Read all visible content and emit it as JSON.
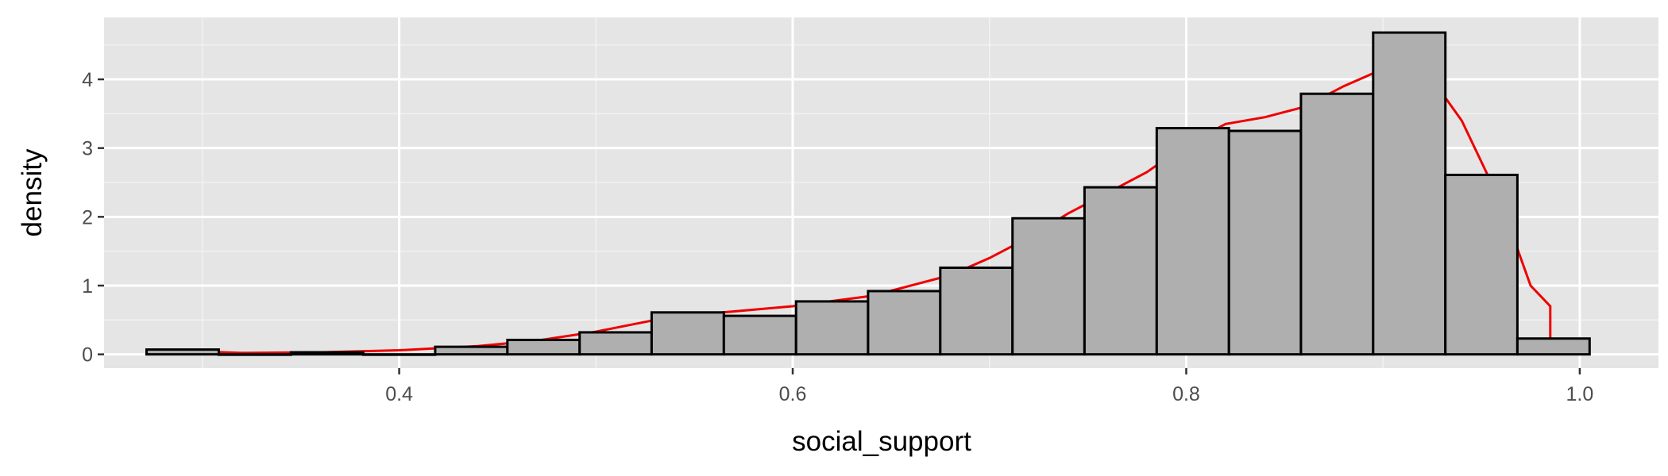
{
  "chart_data": {
    "type": "bar",
    "subtype": "histogram-with-density",
    "title": "",
    "xlabel": "social_support",
    "ylabel": "density",
    "xlim": [
      0.25,
      1.04
    ],
    "ylim": [
      -0.2,
      4.9
    ],
    "x_ticks": [
      {
        "value": 0.4,
        "label": "0.4"
      },
      {
        "value": 0.6,
        "label": "0.6"
      },
      {
        "value": 0.8,
        "label": "0.8"
      },
      {
        "value": 1.0,
        "label": "1.0"
      }
    ],
    "y_ticks": [
      {
        "value": 0,
        "label": "0"
      },
      {
        "value": 1,
        "label": "1"
      },
      {
        "value": 2,
        "label": "2"
      },
      {
        "value": 3,
        "label": "3"
      },
      {
        "value": 4,
        "label": "4"
      }
    ],
    "x_minor_breaks": [
      0.3,
      0.5,
      0.7,
      0.9
    ],
    "y_minor_breaks": [
      0.5,
      1.5,
      2.5,
      3.5,
      4.5
    ],
    "grid": true,
    "bins": [
      {
        "x0": 0.2716,
        "x1": 0.3083,
        "density": 0.07
      },
      {
        "x0": 0.3083,
        "x1": 0.345,
        "density": 0.0
      },
      {
        "x0": 0.345,
        "x1": 0.3817,
        "density": 0.03
      },
      {
        "x0": 0.3817,
        "x1": 0.4183,
        "density": 0.0
      },
      {
        "x0": 0.4183,
        "x1": 0.455,
        "density": 0.11
      },
      {
        "x0": 0.455,
        "x1": 0.4917,
        "density": 0.21
      },
      {
        "x0": 0.4917,
        "x1": 0.5283,
        "density": 0.32
      },
      {
        "x0": 0.5283,
        "x1": 0.565,
        "density": 0.61
      },
      {
        "x0": 0.565,
        "x1": 0.6017,
        "density": 0.56
      },
      {
        "x0": 0.6017,
        "x1": 0.6383,
        "density": 0.77
      },
      {
        "x0": 0.6383,
        "x1": 0.675,
        "density": 0.92
      },
      {
        "x0": 0.675,
        "x1": 0.7117,
        "density": 1.26
      },
      {
        "x0": 0.7117,
        "x1": 0.7483,
        "density": 1.98
      },
      {
        "x0": 0.7483,
        "x1": 0.785,
        "density": 2.43
      },
      {
        "x0": 0.785,
        "x1": 0.8217,
        "density": 3.29
      },
      {
        "x0": 0.8217,
        "x1": 0.8583,
        "density": 3.25
      },
      {
        "x0": 0.8583,
        "x1": 0.895,
        "density": 3.79
      },
      {
        "x0": 0.895,
        "x1": 0.9317,
        "density": 4.68
      },
      {
        "x0": 0.9317,
        "x1": 0.9683,
        "density": 2.61
      },
      {
        "x0": 0.9683,
        "x1": 1.005,
        "density": 0.23
      }
    ],
    "density_curve": {
      "x": [
        0.29,
        0.32,
        0.36,
        0.4,
        0.44,
        0.47,
        0.5,
        0.53,
        0.56,
        0.6,
        0.64,
        0.68,
        0.7,
        0.72,
        0.74,
        0.76,
        0.78,
        0.8,
        0.82,
        0.84,
        0.86,
        0.88,
        0.9,
        0.92,
        0.94,
        0.96,
        0.975,
        0.985,
        0.985
      ],
      "y": [
        0.05,
        0.02,
        0.03,
        0.06,
        0.12,
        0.2,
        0.33,
        0.5,
        0.6,
        0.7,
        0.85,
        1.15,
        1.4,
        1.7,
        2.05,
        2.35,
        2.65,
        3.05,
        3.35,
        3.45,
        3.6,
        3.9,
        4.15,
        4.2,
        3.4,
        2.2,
        1.0,
        0.7,
        0.0
      ]
    },
    "colors": {
      "panel_background": "#e5e5e5",
      "grid_major": "#ffffff",
      "grid_minor": "#f2f2f2",
      "bar_fill": "#afafaf",
      "bar_outline": "#000000",
      "density_line": "#ee0000",
      "tick_label": "#4d4d4d",
      "tick_mark": "#333333"
    }
  }
}
